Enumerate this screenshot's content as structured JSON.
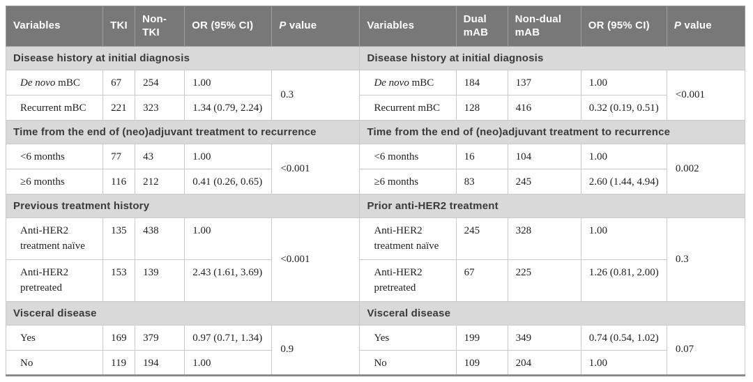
{
  "colors": {
    "header_bg": "#787878",
    "header_text": "#ffffff",
    "header_divider": "#9e9e9e",
    "section_bg": "#d9d9d9",
    "section_text": "#3a3a3a",
    "body_text": "#1f1f1f",
    "grid": "#c9c9c9",
    "bottom_rule": "#8d8d8d",
    "page_bg": "#ffffff"
  },
  "tables": [
    {
      "id": "tki-vs-non-tki",
      "columns": [
        {
          "text": "Variables"
        },
        {
          "text": "TKI"
        },
        {
          "text": "Non-TKI"
        },
        {
          "text": "OR (95% CI)"
        },
        {
          "italic": "P",
          "text": " value"
        }
      ],
      "groups": [
        {
          "section": "Disease history at initial diagnosis",
          "p": "0.3",
          "rows": [
            {
              "label": {
                "italic": "De novo",
                "text": " mBC"
              },
              "n1": "67",
              "n2": "254",
              "or": "1.00"
            },
            {
              "label": {
                "text": "Recurrent mBC"
              },
              "n1": "221",
              "n2": "323",
              "or": "1.34 (0.79, 2.24)"
            }
          ]
        },
        {
          "section": "Time from the end of (neo)adjuvant treatment to recurrence",
          "p": "<0.001",
          "rows": [
            {
              "label": {
                "text": "<6 months"
              },
              "n1": "77",
              "n2": "43",
              "or": "1.00"
            },
            {
              "label": {
                "text": "≥6 months"
              },
              "n1": "116",
              "n2": "212",
              "or": "0.41 (0.26, 0.65)"
            }
          ]
        },
        {
          "section": "Previous treatment history",
          "p": "<0.001",
          "rows": [
            {
              "label": {
                "text": "Anti-HER2 treatment naïve"
              },
              "n1": "135",
              "n2": "438",
              "or": "1.00",
              "tall": true
            },
            {
              "label": {
                "text": "Anti-HER2 pretreated"
              },
              "n1": "153",
              "n2": "139",
              "or": "2.43 (1.61, 3.69)",
              "tall": true
            }
          ]
        },
        {
          "section": "Visceral disease",
          "p": "0.9",
          "rows": [
            {
              "label": {
                "text": "Yes"
              },
              "n1": "169",
              "n2": "379",
              "or": "0.97 (0.71, 1.34)"
            },
            {
              "label": {
                "text": "No"
              },
              "n1": "119",
              "n2": "194",
              "or": "1.00"
            }
          ]
        }
      ]
    },
    {
      "id": "dual-mab-vs-non-dual-mab",
      "columns": [
        {
          "text": "Variables"
        },
        {
          "text": "Dual mAB"
        },
        {
          "text": "Non-dual mAB"
        },
        {
          "text": "OR (95% CI)"
        },
        {
          "italic": "P",
          "text": " value"
        }
      ],
      "groups": [
        {
          "section": "Disease history at initial diagnosis",
          "p": "<0.001",
          "rows": [
            {
              "label": {
                "italic": "De novo",
                "text": " mBC"
              },
              "n1": "184",
              "n2": "137",
              "or": "1.00"
            },
            {
              "label": {
                "text": "Recurrent mBC"
              },
              "n1": "128",
              "n2": "416",
              "or": "0.32 (0.19, 0.51)"
            }
          ]
        },
        {
          "section": "Time from the end of (neo)adjuvant treatment to recurrence",
          "p": "0.002",
          "rows": [
            {
              "label": {
                "text": "<6 months"
              },
              "n1": "16",
              "n2": "104",
              "or": "1.00"
            },
            {
              "label": {
                "text": "≥6 months"
              },
              "n1": "83",
              "n2": "245",
              "or": "2.60 (1.44, 4.94)"
            }
          ]
        },
        {
          "section": "Prior anti-HER2 treatment",
          "p": "0.3",
          "rows": [
            {
              "label": {
                "text": "Anti-HER2 treatment naïve"
              },
              "n1": "245",
              "n2": "328",
              "or": "1.00",
              "tall": true
            },
            {
              "label": {
                "text": "Anti-HER2 pretreated"
              },
              "n1": "67",
              "n2": "225",
              "or": "1.26 (0.81, 2.00)",
              "tall": true
            }
          ]
        },
        {
          "section": "Visceral disease",
          "p": "0.07",
          "rows": [
            {
              "label": {
                "text": "Yes"
              },
              "n1": "199",
              "n2": "349",
              "or": "0.74 (0.54, 1.02)"
            },
            {
              "label": {
                "text": "No"
              },
              "n1": "109",
              "n2": "204",
              "or": "1.00"
            }
          ]
        }
      ]
    }
  ]
}
